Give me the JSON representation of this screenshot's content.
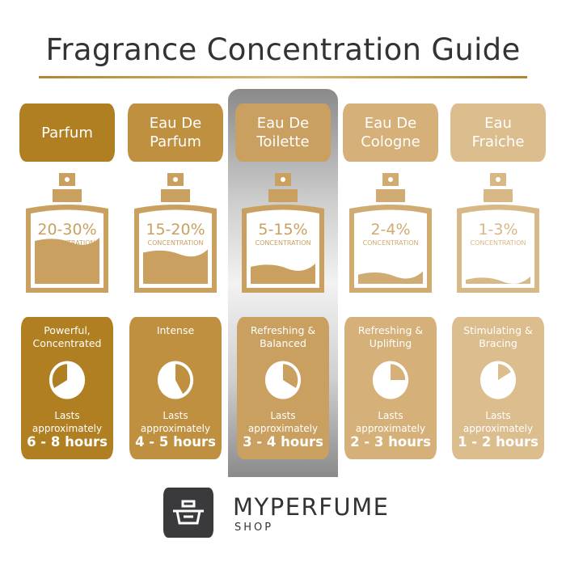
{
  "title": "Fragrance Concentration Guide",
  "concentration_word": "CONCENTRATION",
  "lasts_label": "Lasts approximately",
  "highlighted_column": "Eau De Toilette",
  "colors": {
    "title": "#333333",
    "rule": "#b0852d",
    "white": "#ffffff",
    "logo_bg": "#3a3a3c"
  },
  "types": [
    {
      "name": "Parfum",
      "concentration": "20-30%",
      "trait": "Powerful, Concentrated",
      "hours": "6 - 8 hours",
      "color": "#b07f22",
      "bottle_color": "#c9a05f",
      "fill_level": 0.7,
      "dial_wedge_hours": [
        8,
        12
      ]
    },
    {
      "name": "Eau De Parfum",
      "concentration": "15-20%",
      "trait": "Intense",
      "hours": "4 - 5 hours",
      "color": "#bf9040",
      "bottle_color": "#c9a05f",
      "fill_level": 0.52,
      "dial_wedge_hours": [
        0,
        5
      ]
    },
    {
      "name": "Eau De Toilette",
      "concentration": "5-15%",
      "trait": "Refreshing & Balanced",
      "hours": "3 - 4 hours",
      "color": "#c9a060",
      "bottle_color": "#c9a060",
      "fill_level": 0.3,
      "dial_wedge_hours": [
        0,
        4
      ]
    },
    {
      "name": "Eau De Cologne",
      "concentration": "2-4%",
      "trait": "Refreshing & Uplifting",
      "hours": "2 - 3 hours",
      "color": "#d5b078",
      "bottle_color": "#d0ab72",
      "fill_level": 0.18,
      "dial_wedge_hours": [
        0,
        3
      ]
    },
    {
      "name": "Eau Fraiche",
      "concentration": "1-3%",
      "trait": "Stimulating & Bracing",
      "hours": "1 - 2 hours",
      "color": "#dcbd8e",
      "bottle_color": "#d8b886",
      "fill_level": 0.1,
      "dial_wedge_hours": [
        0,
        2
      ]
    }
  ],
  "brand": {
    "name": "MYPERFUME",
    "sub": "SHOP",
    "icon": "perfume-bottle-logo-icon"
  }
}
